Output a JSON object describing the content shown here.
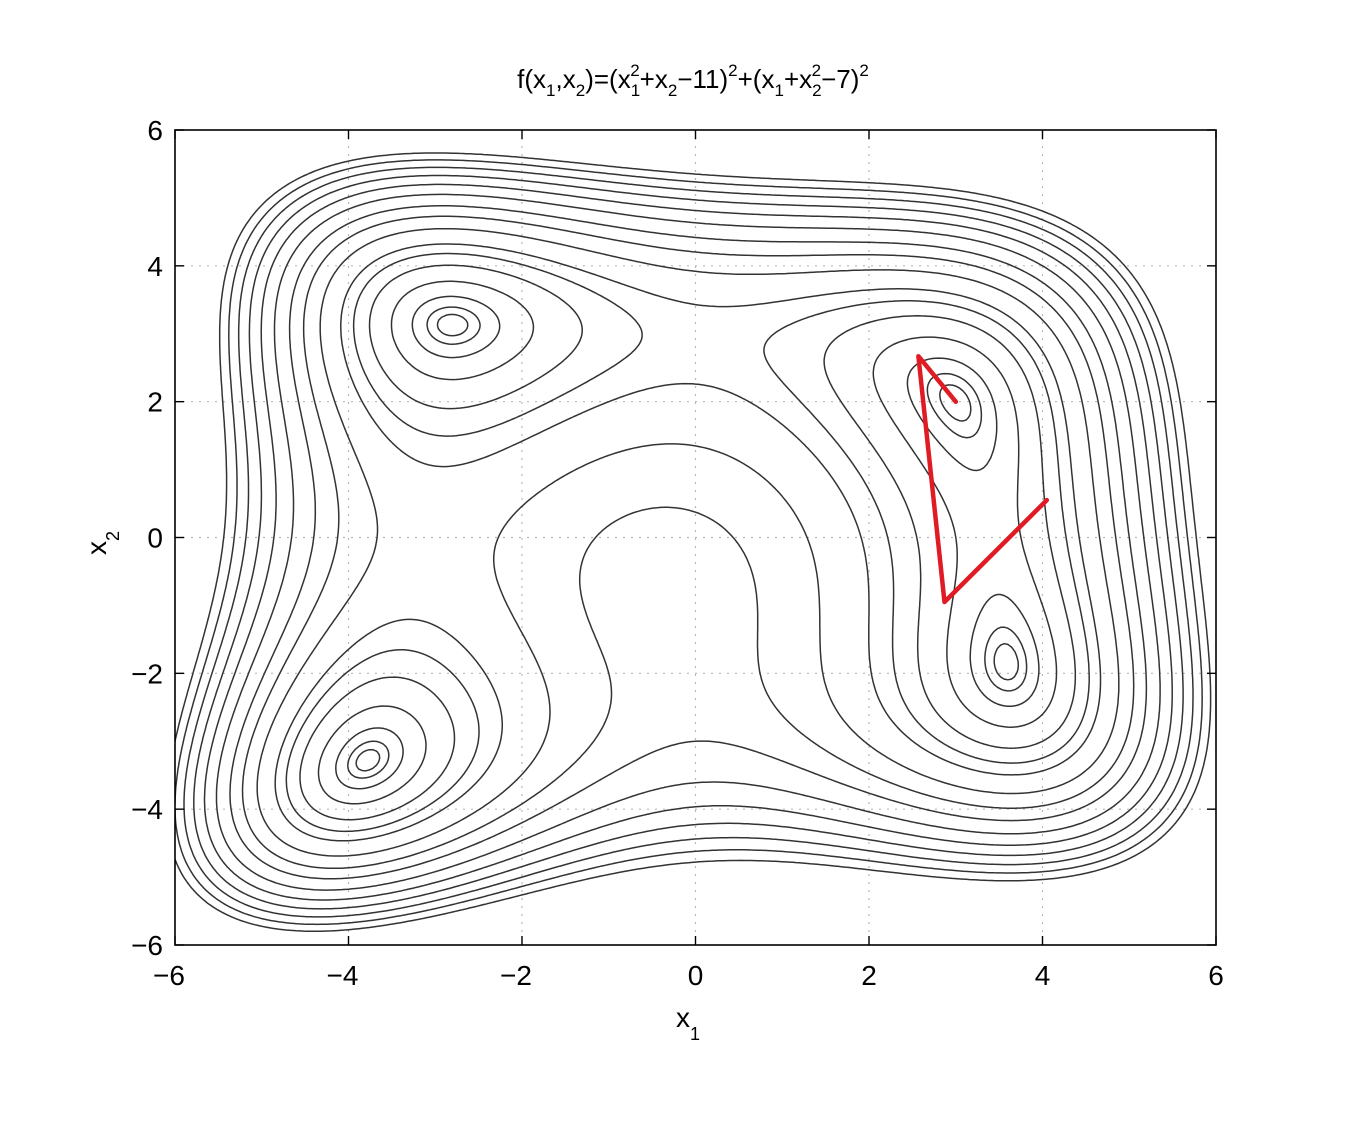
{
  "chart_data": {
    "type": "contour",
    "title": {
      "parts": [
        {
          "t": "f(x",
          "baseline": "normal"
        },
        {
          "t": "1",
          "baseline": "sub"
        },
        {
          "t": ",x",
          "baseline": "normal"
        },
        {
          "t": "2",
          "baseline": "sub"
        },
        {
          "t": ")=(x",
          "baseline": "normal"
        },
        {
          "t": "1",
          "baseline": "sub"
        },
        {
          "t": "2",
          "baseline": "sup",
          "stack": true
        },
        {
          "t": "+x",
          "baseline": "normal"
        },
        {
          "t": "2",
          "baseline": "sub"
        },
        {
          "t": "−11)",
          "baseline": "normal"
        },
        {
          "t": "2",
          "baseline": "sup"
        },
        {
          "t": "+(x",
          "baseline": "normal"
        },
        {
          "t": "1",
          "baseline": "sub"
        },
        {
          "t": "+x",
          "baseline": "normal"
        },
        {
          "t": "2",
          "baseline": "sub"
        },
        {
          "t": "2",
          "baseline": "sup",
          "stack": true
        },
        {
          "t": "−7)",
          "baseline": "normal"
        },
        {
          "t": "2",
          "baseline": "sup"
        }
      ]
    },
    "xlabel": {
      "main": "x",
      "sub": "1"
    },
    "ylabel": {
      "main": "x",
      "sub": "2"
    },
    "xlim": [
      -6,
      6
    ],
    "ylim": [
      -6,
      6
    ],
    "xticks": [
      -6,
      -4,
      -2,
      0,
      2,
      4,
      6
    ],
    "yticks": [
      -6,
      -4,
      -2,
      0,
      2,
      4,
      6
    ],
    "xtick_labels": [
      "−6",
      "−4",
      "−2",
      "0",
      "2",
      "4",
      "6"
    ],
    "ytick_labels": [
      "−6",
      "−4",
      "−2",
      "0",
      "2",
      "4",
      "6"
    ],
    "grid": "dotted",
    "function": "himmelblau",
    "contour_levels": [
      1,
      3,
      8,
      20,
      40,
      60,
      80,
      120,
      160,
      200,
      250,
      300,
      350,
      400,
      450,
      500
    ],
    "contour_color": "#333333",
    "path": {
      "color": "#e01b24",
      "points": [
        [
          4.05,
          0.55
        ],
        [
          2.87,
          -0.95
        ],
        [
          2.57,
          2.67
        ],
        [
          3.0,
          2.0
        ]
      ]
    }
  }
}
